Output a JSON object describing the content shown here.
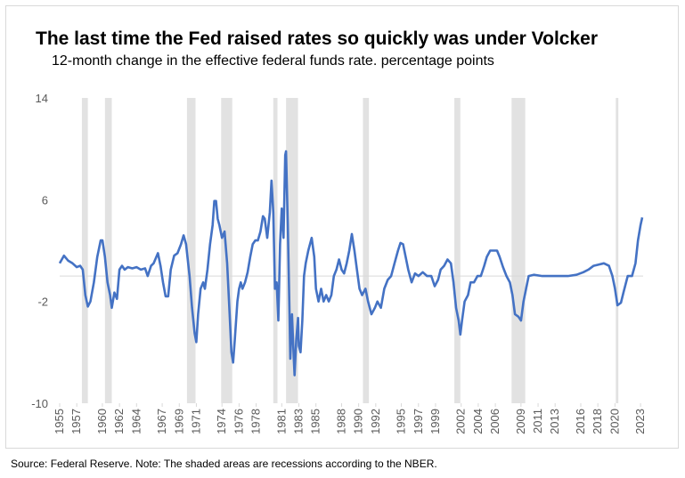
{
  "chart_data": {
    "type": "line",
    "title": "The last time the Fed raised rates so quickly was under Volcker",
    "subtitle": "12-month change in the effective federal funds rate. percentage points",
    "source": "Source: Federal Reserve. Note: The shaded areas are recessions according to the NBER.",
    "color": "#4472c4",
    "xlim": [
      1955,
      2023.3
    ],
    "xticks": [
      1955,
      1957,
      1960,
      1962,
      1964,
      1967,
      1969,
      1971,
      1974,
      1976,
      1978,
      1981,
      1983,
      1985,
      1988,
      1990,
      1992,
      1995,
      1997,
      1999,
      2002,
      2004,
      2006,
      2009,
      2011,
      2013,
      2016,
      2018,
      2020,
      2023
    ],
    "ylim": [
      -10,
      14
    ],
    "yticks": [
      -10,
      -2,
      6,
      14
    ],
    "recessions": [
      [
        1957.6,
        1958.3
      ],
      [
        1960.3,
        1961.1
      ],
      [
        1969.9,
        1970.9
      ],
      [
        1973.9,
        1975.2
      ],
      [
        1980.0,
        1980.5
      ],
      [
        1981.5,
        1982.9
      ],
      [
        1990.5,
        1991.2
      ],
      [
        2001.2,
        2001.9
      ],
      [
        2007.9,
        2009.5
      ],
      [
        2020.1,
        2020.4
      ]
    ],
    "x": [
      1955.0,
      1955.5,
      1956.0,
      1956.5,
      1957.0,
      1957.4,
      1957.7,
      1958.0,
      1958.3,
      1958.6,
      1959.0,
      1959.4,
      1959.8,
      1960.0,
      1960.3,
      1960.6,
      1960.9,
      1961.1,
      1961.4,
      1961.7,
      1962.0,
      1962.3,
      1962.6,
      1963.0,
      1963.5,
      1964.0,
      1964.5,
      1965.0,
      1965.3,
      1965.7,
      1966.0,
      1966.5,
      1966.8,
      1967.1,
      1967.4,
      1967.7,
      1968.0,
      1968.4,
      1968.8,
      1969.2,
      1969.5,
      1969.8,
      1970.2,
      1970.5,
      1970.8,
      1971.0,
      1971.2,
      1971.5,
      1971.8,
      1972.0,
      1972.3,
      1972.6,
      1972.9,
      1973.1,
      1973.3,
      1973.5,
      1973.7,
      1974.0,
      1974.3,
      1974.6,
      1974.9,
      1975.1,
      1975.3,
      1975.5,
      1975.8,
      1976.0,
      1976.2,
      1976.4,
      1976.7,
      1977.0,
      1977.3,
      1977.6,
      1977.9,
      1978.2,
      1978.5,
      1978.8,
      1979.0,
      1979.3,
      1979.6,
      1979.8,
      1980.0,
      1980.2,
      1980.4,
      1980.6,
      1980.8,
      1981.0,
      1981.2,
      1981.4,
      1981.5,
      1981.7,
      1981.9,
      1982.0,
      1982.2,
      1982.4,
      1982.5,
      1982.7,
      1982.9,
      1983.0,
      1983.2,
      1983.4,
      1983.6,
      1983.8,
      1984.1,
      1984.5,
      1984.8,
      1985.0,
      1985.3,
      1985.6,
      1985.9,
      1986.2,
      1986.5,
      1986.8,
      1987.1,
      1987.4,
      1987.7,
      1988.0,
      1988.3,
      1988.6,
      1988.9,
      1989.2,
      1989.5,
      1989.8,
      1990.1,
      1990.4,
      1990.8,
      1991.1,
      1991.5,
      1991.9,
      1992.2,
      1992.6,
      1993.0,
      1993.4,
      1993.8,
      1994.2,
      1994.6,
      1994.9,
      1995.2,
      1995.5,
      1995.8,
      1996.2,
      1996.6,
      1997.0,
      1997.5,
      1998.0,
      1998.5,
      1998.9,
      1999.3,
      1999.6,
      2000.0,
      2000.4,
      2000.8,
      2001.1,
      2001.4,
      2001.7,
      2001.9,
      2002.1,
      2002.4,
      2002.8,
      2003.1,
      2003.5,
      2003.9,
      2004.3,
      2004.7,
      2005.0,
      2005.4,
      2005.8,
      2006.2,
      2006.5,
      2006.9,
      2007.3,
      2007.7,
      2008.0,
      2008.3,
      2008.7,
      2009.0,
      2009.3,
      2009.6,
      2009.9,
      2010.5,
      2011.5,
      2012.5,
      2013.5,
      2014.5,
      2015.5,
      2016.3,
      2016.9,
      2017.5,
      2018.1,
      2018.7,
      2019.3,
      2019.7,
      2020.0,
      2020.3,
      2020.7,
      2021.0,
      2021.5,
      2022.0,
      2022.4,
      2022.7,
      2023.0,
      2023.2
    ],
    "values": [
      1.0,
      1.6,
      1.2,
      1.0,
      0.7,
      0.8,
      0.5,
      -1.5,
      -2.4,
      -2.0,
      -0.5,
      1.5,
      2.8,
      2.8,
      1.5,
      -0.5,
      -1.5,
      -2.5,
      -1.3,
      -1.8,
      0.5,
      0.8,
      0.5,
      0.7,
      0.6,
      0.7,
      0.5,
      0.6,
      0.0,
      0.8,
      1.0,
      1.8,
      0.8,
      -0.5,
      -1.6,
      -1.6,
      0.5,
      1.6,
      1.8,
      2.5,
      3.2,
      2.5,
      0,
      -2.5,
      -4.5,
      -5.2,
      -3.0,
      -1.0,
      -0.5,
      -1.0,
      0.5,
      2.5,
      4.0,
      5.9,
      5.9,
      4.5,
      4.0,
      3.0,
      3.5,
      1.0,
      -3.0,
      -6.0,
      -6.8,
      -5.0,
      -2.0,
      -1.0,
      -0.5,
      -1.0,
      -0.5,
      0.3,
      1.5,
      2.5,
      2.8,
      2.8,
      3.5,
      4.7,
      4.5,
      3.0,
      5.0,
      7.5,
      5.0,
      -1.0,
      -0.5,
      -3.5,
      2.5,
      5.3,
      3.0,
      9.5,
      9.8,
      4.0,
      -2.8,
      -6.5,
      -3.0,
      -6.5,
      -7.8,
      -5.0,
      -3.3,
      -5.5,
      -6.0,
      -3.5,
      0,
      1.0,
      2.0,
      3.0,
      1.5,
      -1.0,
      -2.0,
      -1.0,
      -2.0,
      -1.5,
      -2.0,
      -1.5,
      0.0,
      0.5,
      1.3,
      0.5,
      0.2,
      1.0,
      2.0,
      3.3,
      2.0,
      0.5,
      -1.0,
      -1.5,
      -1.0,
      -2.0,
      -3.0,
      -2.5,
      -2.0,
      -2.5,
      -1.0,
      -0.3,
      0.0,
      1.0,
      2.0,
      2.6,
      2.5,
      1.5,
      0.5,
      -0.5,
      0.2,
      0.0,
      0.3,
      0.0,
      0.0,
      -0.8,
      -0.3,
      0.5,
      0.8,
      1.3,
      1.0,
      -0.5,
      -2.5,
      -3.5,
      -4.6,
      -3.5,
      -2.0,
      -1.5,
      -0.5,
      -0.5,
      0.0,
      0.0,
      0.8,
      1.5,
      2.0,
      2.0,
      2.0,
      1.5,
      0.7,
      0.0,
      -0.5,
      -1.5,
      -3.0,
      -3.2,
      -3.5,
      -2.0,
      -1.0,
      0,
      0.1,
      0.0,
      0.0,
      0.0,
      0.0,
      0.1,
      0.3,
      0.5,
      0.8,
      0.9,
      1.0,
      0.8,
      0.0,
      -1.0,
      -2.3,
      -2.1,
      -1.3,
      0.0,
      0.0,
      1.0,
      2.8,
      4.0,
      4.6
    ]
  }
}
